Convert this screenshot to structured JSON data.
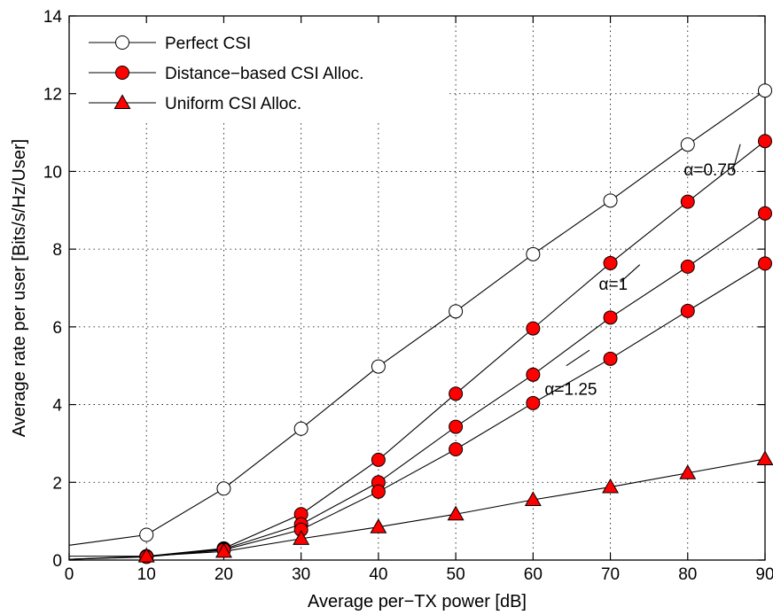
{
  "chart_data": {
    "type": "line",
    "xlabel": "Average per−TX power [dB]",
    "ylabel": "Average rate per user [Bits/s/Hz/User]",
    "xlim": [
      0,
      90
    ],
    "ylim": [
      0,
      14
    ],
    "xticks": [
      0,
      10,
      20,
      30,
      40,
      50,
      60,
      70,
      80,
      90
    ],
    "yticks": [
      0,
      2,
      4,
      6,
      8,
      10,
      12,
      14
    ],
    "grid": true,
    "legend_position": "top-left",
    "legend": [
      {
        "label": "Perfect CSI",
        "marker": "circle",
        "fill": "#ffffff"
      },
      {
        "label": "Distance−based CSI Alloc.",
        "marker": "circle",
        "fill": "#ff0000"
      },
      {
        "label": "Uniform  CSI Alloc.",
        "marker": "triangle",
        "fill": "#ff0000"
      }
    ],
    "series": [
      {
        "marker": "circle",
        "fill": "#ffffff",
        "x": [
          0,
          10,
          20,
          30,
          40,
          50,
          60,
          70,
          80,
          90
        ],
        "y": [
          0.38,
          0.65,
          1.84,
          3.38,
          4.98,
          6.4,
          7.87,
          9.25,
          10.69,
          12.08
        ],
        "markers_from": 1
      },
      {
        "marker": "circle",
        "fill": "#ff0000",
        "x": [
          0,
          10,
          20,
          30,
          40,
          50,
          60,
          70,
          80,
          90
        ],
        "y": [
          0.02,
          0.1,
          0.3,
          1.18,
          2.58,
          4.28,
          5.96,
          7.64,
          9.22,
          10.78
        ],
        "markers_from": 1
      },
      {
        "marker": "circle",
        "fill": "#ff0000",
        "x": [
          0,
          10,
          20,
          30,
          40,
          50,
          60,
          70,
          80,
          90
        ],
        "y": [
          0.02,
          0.09,
          0.28,
          0.92,
          2.0,
          3.43,
          4.77,
          6.24,
          7.55,
          8.92
        ],
        "markers_from": 1
      },
      {
        "marker": "circle",
        "fill": "#ff0000",
        "x": [
          0,
          10,
          20,
          30,
          40,
          50,
          60,
          70,
          80,
          90
        ],
        "y": [
          0.02,
          0.08,
          0.26,
          0.78,
          1.76,
          2.85,
          4.04,
          5.18,
          6.41,
          7.63
        ],
        "markers_from": 1
      },
      {
        "marker": "triangle",
        "fill": "#ff0000",
        "x": [
          0,
          10,
          20,
          30,
          40,
          50,
          60,
          70,
          80,
          90
        ],
        "y": [
          0.1,
          0.1,
          0.22,
          0.55,
          0.85,
          1.18,
          1.55,
          1.88,
          2.24,
          2.6
        ],
        "markers_from": 1
      }
    ],
    "annotations": [
      {
        "text": "α=0.75",
        "x": 79.5,
        "y": 9.9,
        "pointer": [
          [
            85.8,
            10.0
          ],
          [
            86.8,
            10.7
          ]
        ]
      },
      {
        "text": "α=1",
        "x": 68.5,
        "y": 6.95,
        "pointer": [
          [
            71.3,
            7.15
          ],
          [
            73.8,
            7.6
          ]
        ]
      },
      {
        "text": "α=1.25",
        "x": 61.5,
        "y": 4.25,
        "pointer": [
          [
            64.3,
            5.0
          ],
          [
            67.3,
            5.4
          ]
        ]
      }
    ]
  }
}
